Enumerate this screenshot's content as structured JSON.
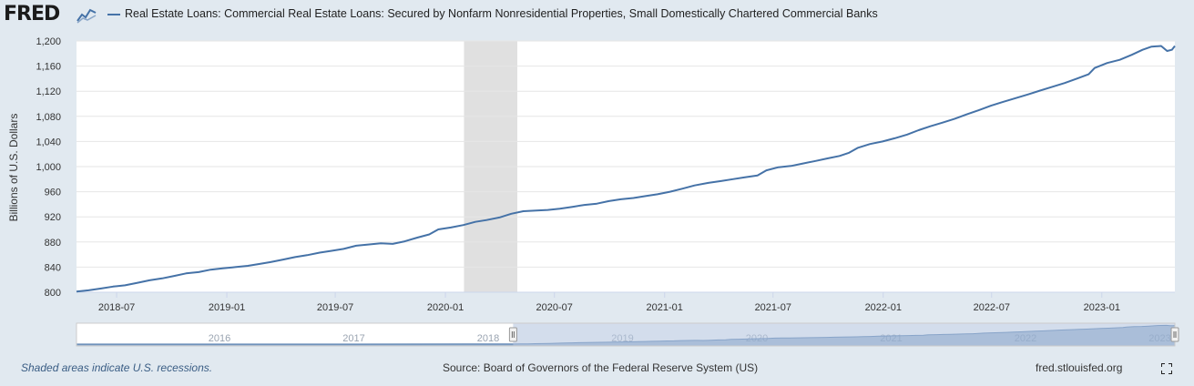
{
  "header": {
    "logo_text": "FRED",
    "series_title": "Real Estate Loans: Commercial Real Estate Loans: Secured by Nonfarm Nonresidential Properties, Small Domestically Chartered Commercial Banks"
  },
  "footer": {
    "recession_note": "Shaded areas indicate U.S. recessions.",
    "source": "Source: Board of Governors of the Federal Reserve System (US)",
    "site": "fred.stlouisfed.org"
  },
  "icons": {
    "logo_graph": "fred-graph-icon",
    "fullscreen": "fullscreen-icon"
  },
  "colors": {
    "line": "#4572a7",
    "recession": "#e0e0e0",
    "background": "#e1e9f0",
    "navigator_mask": "#b6c6df"
  },
  "chart_data": {
    "type": "line",
    "title": "Real Estate Loans: Commercial Real Estate Loans: Secured by Nonfarm Nonresidential Properties, Small Domestically Chartered Commercial Banks",
    "ylabel": "Billions of U.S. Dollars",
    "xlabel": "",
    "ylim": [
      800,
      1200
    ],
    "xlim": [
      "2018-04-25",
      "2023-05-03"
    ],
    "yticks": [
      800,
      840,
      880,
      920,
      960,
      1000,
      1040,
      1080,
      1120,
      1160,
      1200
    ],
    "ytick_labels": [
      "800",
      "840",
      "880",
      "920",
      "960",
      "1,000",
      "1,040",
      "1,080",
      "1,120",
      "1,160",
      "1,200"
    ],
    "xticks": [
      "2018-07-01",
      "2019-01-01",
      "2019-07-01",
      "2020-01-01",
      "2020-07-01",
      "2021-01-01",
      "2021-07-01",
      "2022-01-01",
      "2022-07-01",
      "2023-01-01"
    ],
    "xtick_labels": [
      "2018-07",
      "2019-01",
      "2019-07",
      "2020-01",
      "2020-07",
      "2021-01",
      "2021-07",
      "2022-01",
      "2022-07",
      "2023-01"
    ],
    "grid": "horizontal",
    "recessions": [
      {
        "start": "2020-02-01",
        "end": "2020-04-30"
      }
    ],
    "series": [
      {
        "color": "#4572a7",
        "points": [
          [
            "2018-04-25",
            801
          ],
          [
            "2018-05-15",
            803
          ],
          [
            "2018-06-05",
            806
          ],
          [
            "2018-06-25",
            809
          ],
          [
            "2018-07-15",
            811
          ],
          [
            "2018-08-05",
            815
          ],
          [
            "2018-08-25",
            819
          ],
          [
            "2018-09-15",
            822
          ],
          [
            "2018-10-05",
            826
          ],
          [
            "2018-10-25",
            830
          ],
          [
            "2018-11-15",
            832
          ],
          [
            "2018-12-05",
            836
          ],
          [
            "2018-12-25",
            838
          ],
          [
            "2019-01-15",
            840
          ],
          [
            "2019-02-05",
            842
          ],
          [
            "2019-02-25",
            845
          ],
          [
            "2019-03-15",
            848
          ],
          [
            "2019-04-05",
            852
          ],
          [
            "2019-04-25",
            856
          ],
          [
            "2019-05-15",
            859
          ],
          [
            "2019-06-05",
            863
          ],
          [
            "2019-06-25",
            866
          ],
          [
            "2019-07-15",
            869
          ],
          [
            "2019-08-05",
            874
          ],
          [
            "2019-08-25",
            876
          ],
          [
            "2019-09-15",
            878
          ],
          [
            "2019-10-05",
            877
          ],
          [
            "2019-10-25",
            881
          ],
          [
            "2019-11-15",
            887
          ],
          [
            "2019-12-05",
            892
          ],
          [
            "2019-12-20",
            900
          ],
          [
            "2020-01-10",
            903
          ],
          [
            "2020-01-31",
            907
          ],
          [
            "2020-02-20",
            912
          ],
          [
            "2020-03-10",
            915
          ],
          [
            "2020-03-31",
            919
          ],
          [
            "2020-04-20",
            925
          ],
          [
            "2020-05-10",
            929
          ],
          [
            "2020-06-01",
            930
          ],
          [
            "2020-06-20",
            931
          ],
          [
            "2020-07-10",
            933
          ],
          [
            "2020-07-31",
            936
          ],
          [
            "2020-08-20",
            939
          ],
          [
            "2020-09-10",
            941
          ],
          [
            "2020-09-30",
            945
          ],
          [
            "2020-10-20",
            948
          ],
          [
            "2020-11-10",
            950
          ],
          [
            "2020-11-30",
            953
          ],
          [
            "2020-12-20",
            956
          ],
          [
            "2021-01-10",
            960
          ],
          [
            "2021-01-31",
            965
          ],
          [
            "2021-02-20",
            970
          ],
          [
            "2021-03-15",
            974
          ],
          [
            "2021-04-05",
            977
          ],
          [
            "2021-04-25",
            980
          ],
          [
            "2021-05-15",
            983
          ],
          [
            "2021-06-05",
            986
          ],
          [
            "2021-06-20",
            994
          ],
          [
            "2021-07-10",
            999
          ],
          [
            "2021-07-31",
            1001
          ],
          [
            "2021-08-20",
            1005
          ],
          [
            "2021-09-10",
            1009
          ],
          [
            "2021-09-30",
            1013
          ],
          [
            "2021-10-20",
            1017
          ],
          [
            "2021-11-05",
            1022
          ],
          [
            "2021-11-20",
            1030
          ],
          [
            "2021-12-10",
            1036
          ],
          [
            "2021-12-31",
            1040
          ],
          [
            "2022-01-20",
            1045
          ],
          [
            "2022-02-10",
            1051
          ],
          [
            "2022-03-01",
            1058
          ],
          [
            "2022-03-20",
            1064
          ],
          [
            "2022-04-10",
            1070
          ],
          [
            "2022-04-30",
            1076
          ],
          [
            "2022-05-20",
            1083
          ],
          [
            "2022-06-10",
            1090
          ],
          [
            "2022-06-30",
            1097
          ],
          [
            "2022-07-20",
            1103
          ],
          [
            "2022-08-10",
            1109
          ],
          [
            "2022-08-31",
            1115
          ],
          [
            "2022-09-20",
            1121
          ],
          [
            "2022-10-10",
            1127
          ],
          [
            "2022-10-31",
            1133
          ],
          [
            "2022-11-20",
            1140
          ],
          [
            "2022-12-10",
            1147
          ],
          [
            "2022-12-20",
            1157
          ],
          [
            "2023-01-10",
            1165
          ],
          [
            "2023-01-31",
            1170
          ],
          [
            "2023-02-20",
            1178
          ],
          [
            "2023-03-10",
            1186
          ],
          [
            "2023-03-25",
            1191
          ],
          [
            "2023-04-10",
            1192
          ],
          [
            "2023-04-20",
            1184
          ],
          [
            "2023-04-28",
            1186
          ],
          [
            "2023-05-03",
            1192
          ]
        ]
      }
    ]
  },
  "navigator": {
    "year_labels": [
      "2016",
      "2017",
      "2018",
      "2019",
      "2020",
      "2021",
      "2022",
      "2023"
    ],
    "xlim": [
      "2015-01-01",
      "2023-05-03"
    ],
    "selected_range": [
      "2018-04-25",
      "2023-05-03"
    ]
  }
}
